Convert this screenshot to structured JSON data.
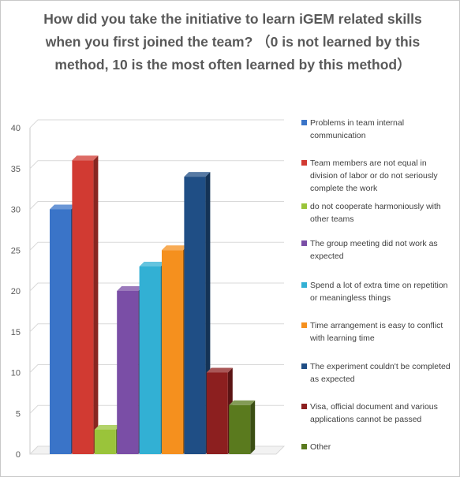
{
  "chart_data": {
    "type": "bar",
    "title": "How did you take the initiative to learn iGEM related skills when you first joined the team?  （0 is not learned by this method, 10 is the most often learned by this method）",
    "ylim": [
      0,
      40
    ],
    "yticks": [
      0,
      5,
      10,
      15,
      20,
      25,
      30,
      35,
      40
    ],
    "grid": true,
    "legend_position": "right",
    "series": [
      {
        "name": "Problems in team internal communication",
        "value": 30,
        "color": "#3a74c8"
      },
      {
        "name": "Team members are not equal in division of labor or do not seriously complete the work",
        "value": 36,
        "color": "#d13a32"
      },
      {
        "name": "do not cooperate harmoniously with other teams",
        "value": 3,
        "color": "#9ac43a"
      },
      {
        "name": "The group meeting did not work as expected",
        "value": 20,
        "color": "#7a4ea6"
      },
      {
        "name": "Spend a lot of extra time on repetition or meaningless things",
        "value": 23,
        "color": "#32b0d4"
      },
      {
        "name": "Time arrangement is easy to conflict with learning time",
        "value": 25,
        "color": "#f5901e"
      },
      {
        "name": "The experiment couldn't be completed as expected",
        "value": 34,
        "color": "#1f4e85"
      },
      {
        "name": "Visa, official document and various applications cannot be passed",
        "value": 10,
        "color": "#8c1f1f"
      },
      {
        "name": "Other",
        "value": 6,
        "color": "#5a7a1e"
      }
    ]
  }
}
